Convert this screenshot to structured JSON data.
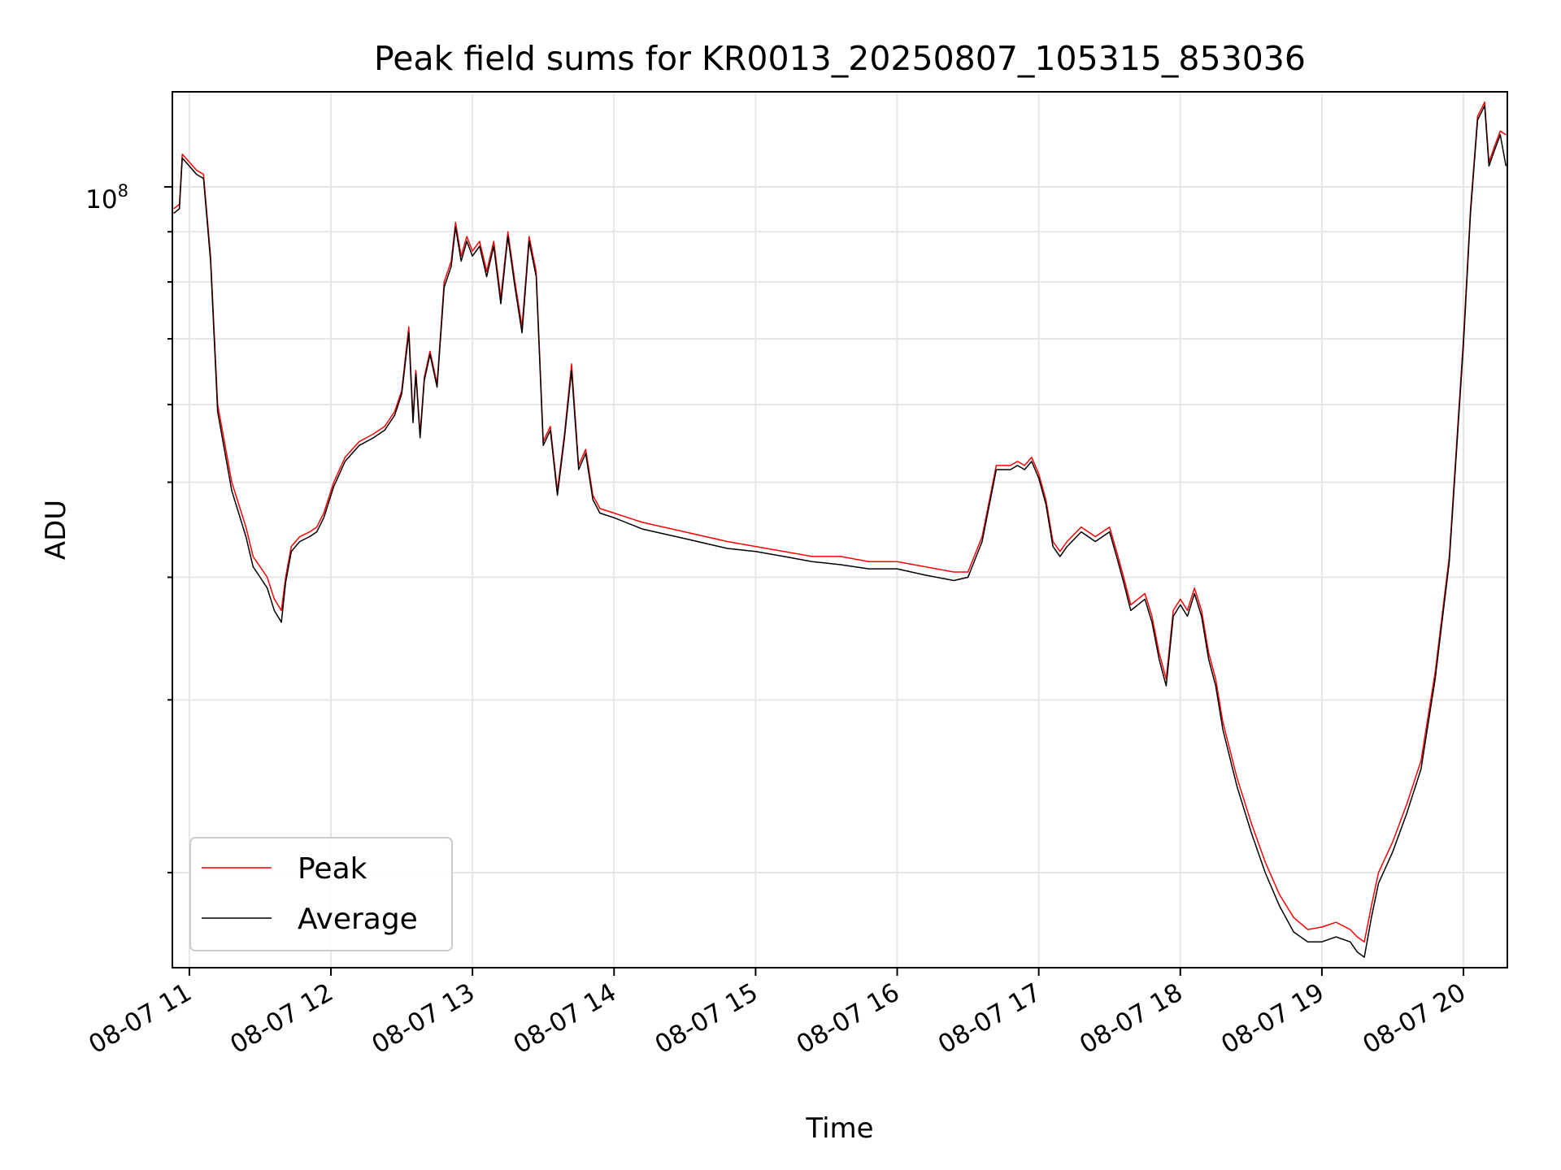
{
  "chart_data": {
    "type": "line",
    "title": "Peak field sums for KR0013_20250807_105315_853036",
    "xlabel": "Time",
    "ylabel": "ADU",
    "y_scale": "log",
    "y_major_tick_label": "10^8",
    "x_tick_labels": [
      "08-07 11",
      "08-07 12",
      "08-07 13",
      "08-07 14",
      "08-07 15",
      "08-07 16",
      "08-07 17",
      "08-07 18",
      "08-07 19",
      "08-07 20"
    ],
    "x_tick_hours": [
      11,
      12,
      13,
      14,
      15,
      16,
      17,
      18,
      19,
      20
    ],
    "xlim_hours": [
      10.88,
      20.31
    ],
    "ylim": [
      16000000,
      125000000
    ],
    "grid": true,
    "legend_position": "lower-left",
    "series": [
      {
        "name": "Peak",
        "color": "#ff0000",
        "x_hours": [
          10.89,
          10.93,
          10.95,
          11.0,
          11.05,
          11.1,
          11.15,
          11.2,
          11.3,
          11.4,
          11.45,
          11.5,
          11.55,
          11.6,
          11.65,
          11.68,
          11.72,
          11.78,
          11.85,
          11.9,
          11.95,
          12.02,
          12.1,
          12.2,
          12.3,
          12.38,
          12.45,
          12.5,
          12.55,
          12.58,
          12.6,
          12.63,
          12.66,
          12.7,
          12.75,
          12.8,
          12.85,
          12.88,
          12.92,
          12.96,
          13.0,
          13.05,
          13.1,
          13.15,
          13.2,
          13.25,
          13.3,
          13.35,
          13.4,
          13.45,
          13.5,
          13.55,
          13.6,
          13.65,
          13.7,
          13.75,
          13.8,
          13.85,
          13.9,
          14.0,
          14.2,
          14.5,
          14.8,
          15.0,
          15.2,
          15.4,
          15.6,
          15.8,
          16.0,
          16.2,
          16.4,
          16.5,
          16.6,
          16.7,
          16.8,
          16.85,
          16.9,
          16.95,
          17.0,
          17.05,
          17.1,
          17.15,
          17.2,
          17.3,
          17.4,
          17.5,
          17.55,
          17.6,
          17.65,
          17.7,
          17.75,
          17.8,
          17.85,
          17.9,
          17.95,
          18.0,
          18.05,
          18.1,
          18.15,
          18.2,
          18.25,
          18.3,
          18.4,
          18.5,
          18.6,
          18.7,
          18.8,
          18.9,
          19.0,
          19.1,
          19.2,
          19.25,
          19.3,
          19.35,
          19.4,
          19.5,
          19.6,
          19.7,
          19.8,
          19.9,
          20.0,
          20.05,
          20.1,
          20.15,
          20.18,
          20.22,
          20.26,
          20.3
        ],
        "values": [
          95000000,
          96000000,
          108000000,
          106000000,
          104000000,
          103000000,
          85000000,
          60000000,
          50000000,
          45000000,
          42000000,
          41000000,
          40000000,
          38000000,
          37000000,
          40000000,
          43000000,
          44000000,
          44500000,
          45000000,
          46500000,
          50000000,
          53000000,
          55000000,
          56000000,
          57000000,
          59000000,
          62000000,
          72000000,
          58000000,
          65000000,
          56000000,
          64000000,
          68000000,
          63000000,
          80000000,
          84000000,
          92000000,
          85000000,
          89000000,
          86000000,
          88000000,
          82000000,
          88000000,
          77000000,
          90000000,
          80000000,
          72000000,
          89000000,
          82000000,
          55000000,
          57000000,
          49000000,
          56000000,
          66000000,
          52000000,
          54000000,
          48500000,
          47000000,
          46500000,
          45500000,
          44500000,
          43500000,
          43000000,
          42500000,
          42000000,
          42000000,
          41500000,
          41500000,
          41000000,
          40500000,
          40500000,
          44000000,
          52000000,
          52000000,
          52500000,
          52000000,
          53000000,
          51000000,
          48000000,
          43500000,
          42500000,
          43500000,
          45000000,
          44000000,
          45000000,
          42500000,
          40000000,
          37500000,
          38000000,
          38500000,
          36500000,
          33500000,
          31500000,
          37000000,
          38000000,
          37000000,
          39000000,
          37000000,
          33500000,
          31500000,
          28500000,
          25000000,
          22500000,
          20500000,
          19000000,
          18000000,
          17500000,
          17600000,
          17800000,
          17500000,
          17200000,
          17000000,
          18500000,
          20000000,
          21500000,
          23500000,
          26000000,
          32000000,
          42000000,
          70000000,
          95000000,
          118000000,
          122000000,
          106000000,
          110000000,
          114000000,
          113000000
        ],
        "stroke_width": 1.5
      },
      {
        "name": "Average",
        "color": "#000000",
        "x_hours": [
          10.89,
          10.93,
          10.95,
          11.0,
          11.05,
          11.1,
          11.15,
          11.2,
          11.3,
          11.4,
          11.45,
          11.5,
          11.55,
          11.6,
          11.65,
          11.68,
          11.72,
          11.78,
          11.85,
          11.9,
          11.95,
          12.02,
          12.1,
          12.2,
          12.3,
          12.38,
          12.45,
          12.5,
          12.55,
          12.58,
          12.6,
          12.63,
          12.66,
          12.7,
          12.75,
          12.8,
          12.85,
          12.88,
          12.92,
          12.96,
          13.0,
          13.05,
          13.1,
          13.15,
          13.2,
          13.25,
          13.3,
          13.35,
          13.4,
          13.45,
          13.5,
          13.55,
          13.6,
          13.65,
          13.7,
          13.75,
          13.8,
          13.85,
          13.9,
          14.0,
          14.2,
          14.5,
          14.8,
          15.0,
          15.2,
          15.4,
          15.6,
          15.8,
          16.0,
          16.2,
          16.4,
          16.5,
          16.6,
          16.7,
          16.8,
          16.85,
          16.9,
          16.95,
          17.0,
          17.05,
          17.1,
          17.15,
          17.2,
          17.3,
          17.4,
          17.5,
          17.55,
          17.6,
          17.65,
          17.7,
          17.75,
          17.8,
          17.85,
          17.9,
          17.95,
          18.0,
          18.05,
          18.1,
          18.15,
          18.2,
          18.25,
          18.3,
          18.4,
          18.5,
          18.6,
          18.7,
          18.8,
          18.9,
          19.0,
          19.1,
          19.2,
          19.25,
          19.3,
          19.35,
          19.4,
          19.5,
          19.6,
          19.7,
          19.8,
          19.9,
          20.0,
          20.05,
          20.1,
          20.15,
          20.18,
          20.22,
          20.26,
          20.3
        ],
        "values": [
          94000000,
          95000000,
          107000000,
          105000000,
          103000000,
          102000000,
          84000000,
          59000000,
          49000000,
          44000000,
          41000000,
          40000000,
          39000000,
          37000000,
          36000000,
          39500000,
          42500000,
          43500000,
          44000000,
          44500000,
          46000000,
          49500000,
          52500000,
          54500000,
          55500000,
          56500000,
          58500000,
          61500000,
          71000000,
          57500000,
          64500000,
          55500000,
          63500000,
          67500000,
          62500000,
          79000000,
          83000000,
          91000000,
          84000000,
          88000000,
          85000000,
          87000000,
          81000000,
          87000000,
          76000000,
          89000000,
          79000000,
          71000000,
          88000000,
          81000000,
          54500000,
          56500000,
          48500000,
          55500000,
          65000000,
          51500000,
          53500000,
          48000000,
          46500000,
          46000000,
          44800000,
          43800000,
          42800000,
          42500000,
          42000000,
          41500000,
          41200000,
          40800000,
          40800000,
          40200000,
          39700000,
          40000000,
          43500000,
          51500000,
          51500000,
          52000000,
          51500000,
          52500000,
          50500000,
          47500000,
          43000000,
          42000000,
          43000000,
          44500000,
          43500000,
          44500000,
          42000000,
          39500000,
          37000000,
          37500000,
          38000000,
          36000000,
          33000000,
          31000000,
          36500000,
          37500000,
          36500000,
          38500000,
          36500000,
          33000000,
          31000000,
          28000000,
          24500000,
          22000000,
          20000000,
          18500000,
          17400000,
          17000000,
          17000000,
          17200000,
          17000000,
          16600000,
          16400000,
          18000000,
          19500000,
          21000000,
          23000000,
          25500000,
          31500000,
          41500000,
          69000000,
          94000000,
          117000000,
          121000000,
          105000000,
          109000000,
          113000000,
          105000000
        ],
        "stroke_width": 1.5
      }
    ]
  }
}
